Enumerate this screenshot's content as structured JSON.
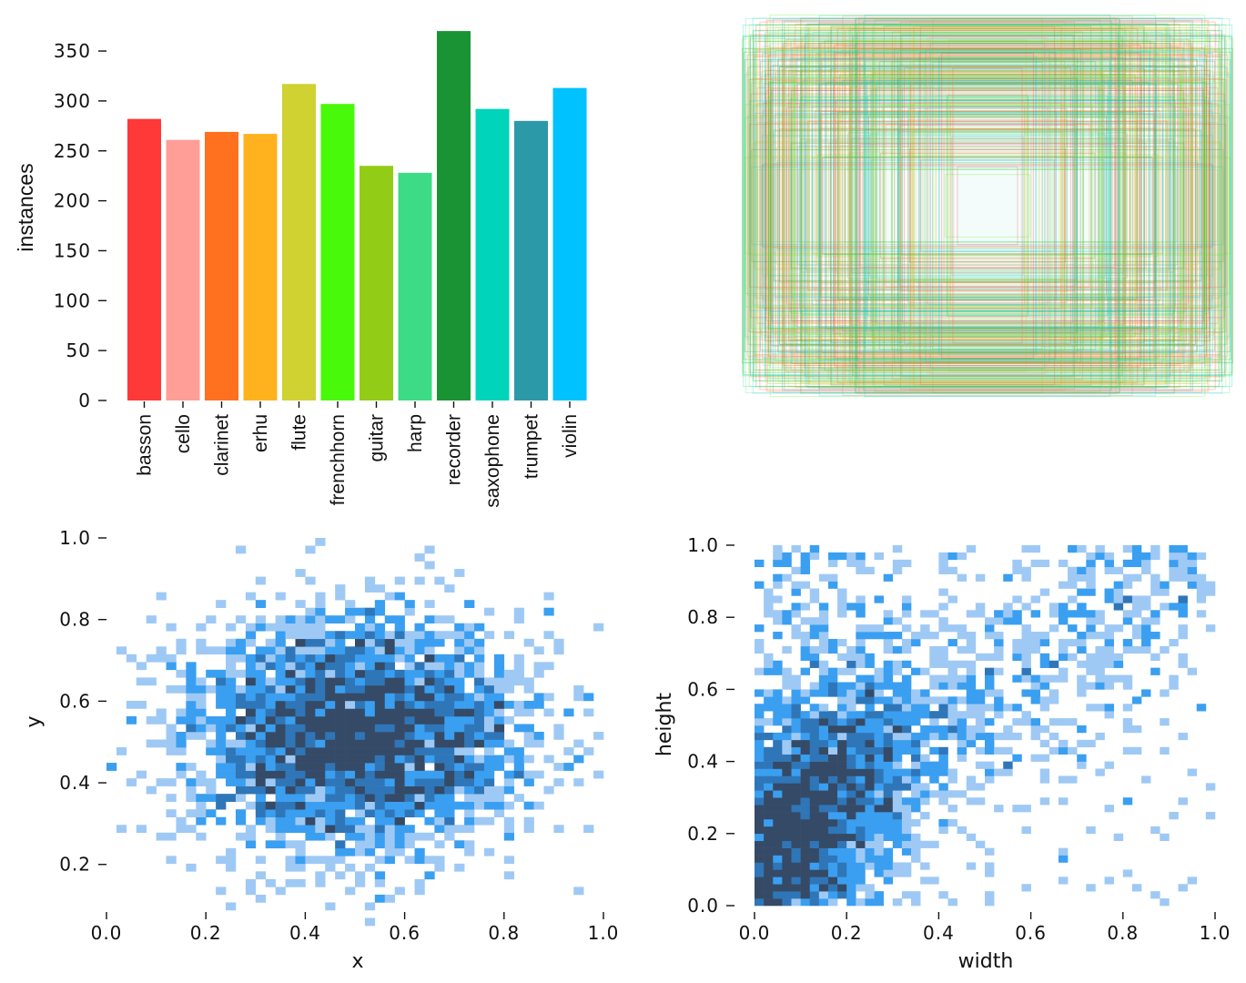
{
  "chart_data": [
    {
      "type": "bar",
      "ylabel": "instances",
      "xlabel": "",
      "ylim": [
        0,
        375
      ],
      "yticks": [
        0,
        50,
        100,
        150,
        200,
        250,
        300,
        350
      ],
      "categories": [
        "basson",
        "cello",
        "clarinet",
        "erhu",
        "flute",
        "frenchhorn",
        "guitar",
        "harp",
        "recorder",
        "saxophone",
        "trumpet",
        "violin"
      ],
      "values": [
        282,
        261,
        269,
        267,
        317,
        297,
        235,
        228,
        370,
        292,
        280,
        313
      ],
      "colors": [
        "#ff3838",
        "#ff9d97",
        "#ff701f",
        "#ffb21d",
        "#cfd231",
        "#48f90a",
        "#92cc17",
        "#3ddb86",
        "#1a9334",
        "#00d4bb",
        "#2c99a8",
        "#00c2ff"
      ]
    },
    {
      "type": "other",
      "description_type": "overlaid label bounding boxes",
      "box_colors": [
        "#ff3838",
        "#ff9d97",
        "#ff701f",
        "#ffb21d",
        "#cfd231",
        "#48f90a",
        "#92cc17",
        "#3ddb86",
        "#1a9334",
        "#00d4bb",
        "#2c99a8",
        "#00c2ff"
      ]
    },
    {
      "type": "heatmap",
      "xlabel": "x",
      "ylabel": "y",
      "xlim": [
        0.0,
        1.0
      ],
      "ylim": [
        0.05,
        1.0
      ],
      "xticks": [
        "0.0",
        "0.2",
        "0.4",
        "0.6",
        "0.8",
        "1.0"
      ],
      "yticks": [
        "0.2",
        "0.4",
        "0.6",
        "0.8",
        "1.0"
      ],
      "center": [
        0.5,
        0.52
      ],
      "spread": [
        0.17,
        0.14
      ],
      "colors": [
        "#9fc9f5",
        "#3a9ff0",
        "#2f76b8",
        "#344a66"
      ]
    },
    {
      "type": "heatmap",
      "xlabel": "width",
      "ylabel": "height",
      "xlim": [
        0.0,
        1.0
      ],
      "ylim": [
        0.0,
        1.0
      ],
      "xticks": [
        "0.0",
        "0.2",
        "0.4",
        "0.6",
        "0.8",
        "1.0"
      ],
      "yticks": [
        "0.0",
        "0.2",
        "0.4",
        "0.6",
        "0.8",
        "1.0"
      ],
      "center": [
        0.12,
        0.28
      ],
      "spread": [
        0.12,
        0.17
      ],
      "colors": [
        "#9fc9f5",
        "#3a9ff0",
        "#2f76b8",
        "#344a66"
      ]
    }
  ]
}
